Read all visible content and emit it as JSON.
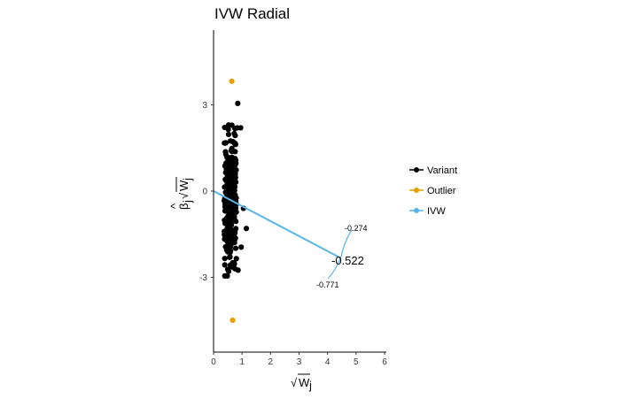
{
  "chart_data": {
    "type": "scatter",
    "title": "IVW Radial",
    "xlabel": "√Wj",
    "ylabel": "β̂j√Wj",
    "xlim": [
      0,
      6
    ],
    "ylim": [
      -5.6,
      5.6
    ],
    "x_ticks": [
      "0",
      "1",
      "2",
      "3",
      "4",
      "5",
      "6"
    ],
    "y_ticks": [
      "3",
      "0",
      "-3"
    ],
    "legend": {
      "placement": "right",
      "items": [
        {
          "label": "Variant",
          "color": "#000000"
        },
        {
          "label": "Outlier",
          "color": "#E69F00"
        },
        {
          "label": "IVW",
          "color": "#56B4E9"
        }
      ]
    },
    "series": [
      {
        "name": "Outlier",
        "color": "#E69F00",
        "points": [
          [
            0.64,
            3.82
          ],
          [
            0.67,
            -4.49
          ]
        ]
      },
      {
        "name": "IVW",
        "color": "#56B4E9",
        "type": "line",
        "slope": -0.522,
        "x_range": [
          0,
          4.45
        ]
      }
    ],
    "annotations": {
      "estimate": "-0.522",
      "upper": "-0.274",
      "lower": "-0.771"
    }
  }
}
